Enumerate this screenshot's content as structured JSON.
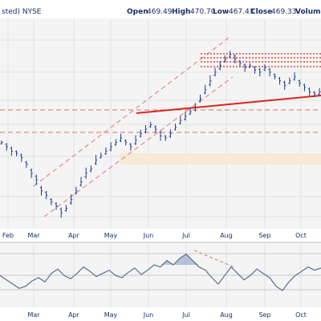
{
  "header": {
    "left_text": "sted) NYSE",
    "open_label": "Open",
    "open_value": "469.49",
    "high_label": "High",
    "high_value": "470.70",
    "low_label": "Low",
    "low_value": "467.43",
    "close_label": "Close",
    "close_value": "469.33",
    "volume_label": "Volume"
  },
  "colors": {
    "price_bars": "#1f3b8f",
    "trend_channel": "#e8888a",
    "horizontal_support": "#e8888a",
    "resistance_dotted": "#d9261c",
    "neckline": "#d9261c",
    "shaded_band": "#f7e9d3",
    "oscillator_line": "#5d6e8c",
    "oscillator_fill": "#8da0bf",
    "oscillator_divergence": "#e8888a",
    "grid": "#dddddd",
    "panel_bg": "#f4f4f4"
  },
  "chart_data": [
    {
      "type": "line",
      "subtype": "ohlc-bars",
      "title": "",
      "x_tick_labels": [
        "Feb",
        "Mar",
        "Apr",
        "May",
        "Jun",
        "Jul",
        "Aug",
        "Sep",
        "Oct"
      ],
      "y_tick_labels": [],
      "grid": true,
      "series": [
        {
          "values": [
            62,
            60,
            58,
            57,
            55,
            52,
            48,
            45,
            40,
            38,
            35,
            33,
            30,
            32,
            36,
            40,
            44,
            48,
            50,
            54,
            56,
            58,
            60,
            62,
            64,
            62,
            60,
            63,
            66,
            68,
            70,
            68,
            65,
            64,
            66,
            69,
            72,
            74,
            76,
            78,
            82,
            86,
            90,
            94,
            97,
            100,
            102,
            100,
            98,
            96,
            97,
            95,
            94,
            96,
            94,
            92,
            90,
            88,
            90,
            92,
            89,
            87,
            85,
            84,
            85
          ]
        }
      ],
      "overlays": {
        "rising_channel": "two parallel dashed trend lines from Mar to late Jul",
        "resistance_levels": "four dotted horizontal lines near the Jul-Aug highs",
        "neckline": "solid rising line from Jun to Oct",
        "support_levels": "two dashed horizontal lines across the chart",
        "shaded_zone": "light horizontal band from May to Oct"
      }
    },
    {
      "type": "area",
      "title": "",
      "x_tick_labels": [
        "Mar",
        "Apr",
        "May",
        "Jun",
        "Jul",
        "Aug",
        "Sep",
        "Oct"
      ],
      "grid": true,
      "series": [
        {
          "values": [
            50,
            46,
            42,
            38,
            40,
            45,
            48,
            44,
            52,
            56,
            50,
            47,
            52,
            58,
            54,
            49,
            52,
            55,
            50,
            48,
            53,
            57,
            51,
            55,
            60,
            58,
            64,
            60,
            66,
            70,
            64,
            58,
            55,
            48,
            42,
            50,
            58,
            52,
            46,
            50,
            56,
            52,
            48,
            40,
            36,
            44,
            50,
            54,
            58,
            55,
            57
          ]
        }
      ]
    }
  ]
}
